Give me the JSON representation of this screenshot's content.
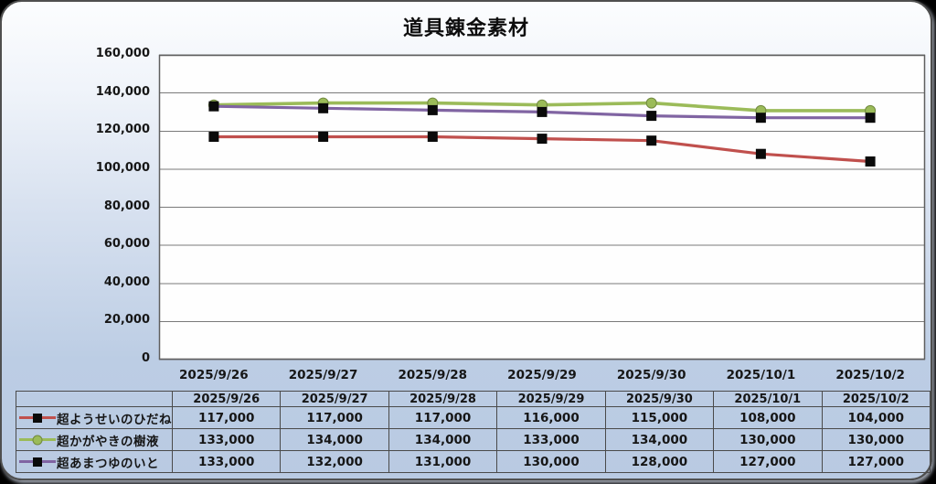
{
  "title": "道具錬金素材",
  "chart_data": {
    "type": "line",
    "title": "道具錬金素材",
    "x": [
      "2025/9/26",
      "2025/9/27",
      "2025/9/28",
      "2025/9/29",
      "2025/9/30",
      "2025/10/1",
      "2025/10/2"
    ],
    "series": [
      {
        "name": "超ようせいのひだね",
        "color": "#C0504D",
        "marker": "square",
        "marker_color": "#0a0a0a",
        "values": [
          117000,
          117000,
          117000,
          116000,
          115000,
          108000,
          104000
        ]
      },
      {
        "name": "超かがやきの樹液",
        "color": "#9BBB59",
        "marker": "circle",
        "marker_color": "#9BBB59",
        "values": [
          133000,
          134000,
          134000,
          133000,
          134000,
          130000,
          130000
        ]
      },
      {
        "name": "超あまつゆのいと",
        "color": "#8064A2",
        "marker": "square",
        "marker_color": "#0a0a0a",
        "values": [
          133000,
          132000,
          131000,
          130000,
          128000,
          127000,
          127000
        ]
      }
    ],
    "ylim": [
      0,
      160000
    ],
    "y_tick_step": 20000,
    "y_tick_labels": [
      "0",
      "20,000",
      "40,000",
      "60,000",
      "80,000",
      "100,000",
      "120,000",
      "140,000",
      "160,000"
    ],
    "grid": true,
    "legend_position": "table-left",
    "colors": {
      "gridline": "#7a7a7a",
      "plot_border": "#5f5f5f",
      "plot_background": "#fefefe"
    }
  },
  "table": {
    "header": [
      "2025/9/26",
      "2025/9/27",
      "2025/9/28",
      "2025/9/29",
      "2025/9/30",
      "2025/10/1",
      "2025/10/2"
    ],
    "rows": [
      {
        "label": "超ようせいのひだね",
        "values": [
          "117,000",
          "117,000",
          "117,000",
          "116,000",
          "115,000",
          "108,000",
          "104,000"
        ]
      },
      {
        "label": "超かがやきの樹液",
        "values": [
          "133,000",
          "134,000",
          "134,000",
          "133,000",
          "134,000",
          "130,000",
          "130,000"
        ]
      },
      {
        "label": "超あまつゆのいと",
        "values": [
          "133,000",
          "132,000",
          "131,000",
          "130,000",
          "128,000",
          "127,000",
          "127,000"
        ]
      }
    ]
  }
}
